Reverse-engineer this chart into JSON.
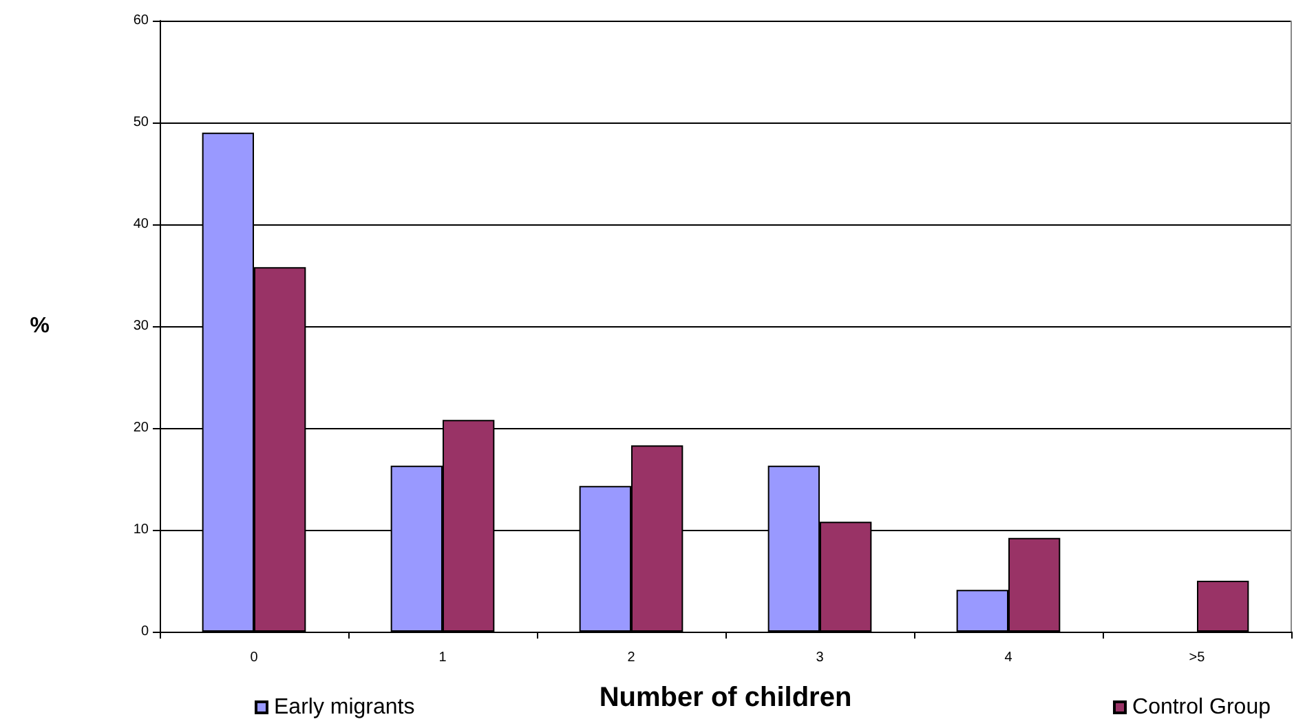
{
  "chart_data": {
    "type": "bar",
    "xlabel": "Number of children",
    "ylabel": "%",
    "categories": [
      "0",
      "1",
      "2",
      "3",
      "4",
      ">5"
    ],
    "series": [
      {
        "name": "Early migrants",
        "color": "#9999ff",
        "values": [
          49.0,
          16.3,
          14.3,
          16.3,
          4.1,
          null
        ]
      },
      {
        "name": "Control Group",
        "color": "#993366",
        "values": [
          35.8,
          20.8,
          18.3,
          10.8,
          9.2,
          5.0
        ]
      }
    ],
    "ylim": [
      0,
      60
    ],
    "yticks": [
      0,
      10,
      20,
      30,
      40,
      50,
      60
    ],
    "grid": "y",
    "legend": "bottom"
  }
}
